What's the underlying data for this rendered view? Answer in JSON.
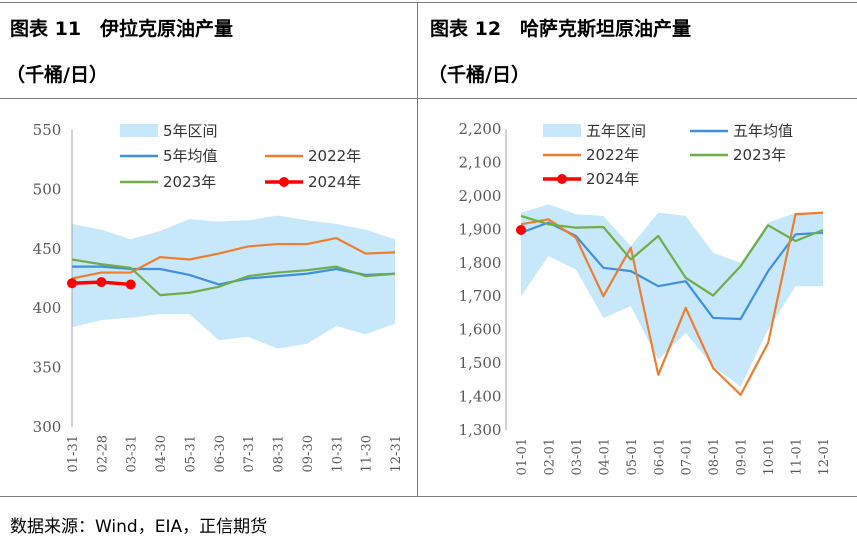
{
  "source_text": "数据来源：Wind，EIA，正信期货",
  "colors": {
    "band": "#c7e8fb",
    "avg": "#3f8fdc",
    "y2022": "#ed7d31",
    "y2023": "#70ad47",
    "y2024": "#ff0000",
    "axis": "#a6a6a6",
    "frame": "#7a7a7a"
  },
  "chart_data": [
    {
      "type": "line",
      "panel_title": "图表 11　伊拉克原油产量",
      "unit": "（千桶/日）",
      "categories": [
        "01-31",
        "02-28",
        "03-31",
        "04-30",
        "05-31",
        "06-30",
        "07-31",
        "08-31",
        "09-30",
        "10-31",
        "11-30",
        "12-31"
      ],
      "ylim": [
        300,
        550
      ],
      "yticks": [
        300,
        350,
        400,
        450,
        500,
        550
      ],
      "ytick_labels": [
        "300",
        "350",
        "400",
        "450",
        "500",
        "550"
      ],
      "legend_position": "top",
      "band": {
        "name": "5年区间",
        "upper": [
          471,
          466,
          458,
          465,
          475,
          473,
          474,
          478,
          474,
          471,
          466,
          458
        ],
        "lower": [
          384,
          390,
          392,
          395,
          395,
          373,
          376,
          366,
          370,
          385,
          378,
          387
        ]
      },
      "series": [
        {
          "name": "5年均值",
          "key": "avg",
          "values": [
            435,
            435,
            433,
            433,
            428,
            420,
            425,
            427,
            429,
            433,
            428,
            429
          ]
        },
        {
          "name": "2022年",
          "key": "y2022",
          "values": [
            425,
            430,
            430,
            443,
            441,
            446,
            452,
            454,
            454,
            459,
            446,
            447
          ]
        },
        {
          "name": "2023年",
          "key": "y2023",
          "values": [
            441,
            437,
            434,
            411,
            413,
            418,
            427,
            430,
            432,
            435,
            427,
            429
          ]
        },
        {
          "name": "2024年",
          "key": "y2024",
          "values": [
            421,
            422,
            420,
            null,
            null,
            null,
            null,
            null,
            null,
            null,
            null,
            null
          ],
          "markers": true
        }
      ]
    },
    {
      "type": "line",
      "panel_title": "图表 12　哈萨克斯坦原油产量",
      "unit": "（千桶/日）",
      "categories": [
        "01-01",
        "02-01",
        "03-01",
        "04-01",
        "05-01",
        "06-01",
        "07-01",
        "08-01",
        "09-01",
        "10-01",
        "11-01",
        "12-01"
      ],
      "ylim": [
        1300,
        2200
      ],
      "yticks": [
        1300,
        1400,
        1500,
        1600,
        1700,
        1800,
        1900,
        2000,
        2100,
        2200
      ],
      "ytick_labels": [
        "1,300",
        "1,400",
        "1,500",
        "1,600",
        "1,700",
        "1,800",
        "1,900",
        "2,000",
        "2,100",
        "2,200"
      ],
      "legend_position": "top",
      "band": {
        "name": "五年区间",
        "upper": [
          1950,
          1975,
          1945,
          1940,
          1850,
          1950,
          1940,
          1830,
          1800,
          1920,
          1950,
          1950
        ],
        "lower": [
          1700,
          1820,
          1780,
          1635,
          1670,
          1510,
          1590,
          1490,
          1430,
          1600,
          1730,
          1730
        ]
      },
      "series": [
        {
          "name": "五年均值",
          "key": "avg",
          "values": [
            1890,
            1920,
            1880,
            1785,
            1775,
            1730,
            1745,
            1635,
            1632,
            1775,
            1885,
            1890
          ]
        },
        {
          "name": "2022年",
          "key": "y2022",
          "values": [
            1915,
            1930,
            1875,
            1700,
            1845,
            1465,
            1665,
            1485,
            1405,
            1560,
            1945,
            1950
          ]
        },
        {
          "name": "2023年",
          "key": "y2023",
          "values": [
            1940,
            1915,
            1905,
            1907,
            1810,
            1880,
            1755,
            1702,
            1790,
            1912,
            1865,
            1898
          ]
        },
        {
          "name": "2024年",
          "key": "y2024",
          "values": [
            1898,
            null,
            null,
            null,
            null,
            null,
            null,
            null,
            null,
            null,
            null,
            null
          ],
          "markers": true
        }
      ]
    }
  ]
}
